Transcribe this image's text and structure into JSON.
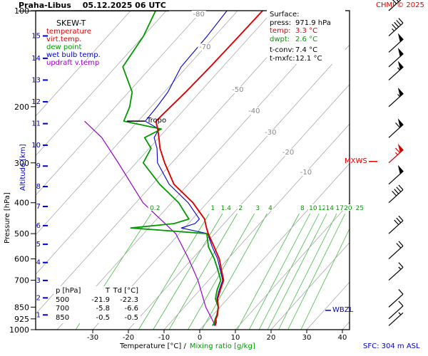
{
  "header": {
    "station": "Praha-Libus",
    "datetime": "05.12.2025 06 UTC",
    "copyright": "CHMI © 2025"
  },
  "chart_label": "SKEW-T",
  "legend": {
    "items": [
      {
        "label": "temperature",
        "color": "#dd0000"
      },
      {
        "label": "virt.temp.",
        "color": "#dd0000"
      },
      {
        "label": "dew point",
        "color": "#009900"
      },
      {
        "label": "wet bulb temp.",
        "color": "#0000cc"
      },
      {
        "label": "updraft v.temp",
        "color": "#9900cc"
      }
    ]
  },
  "surface_box": {
    "title": "Surface:",
    "lines": [
      {
        "label": "press:",
        "value": "971.9 hPa",
        "color": "#000000",
        "gap": false
      },
      {
        "label": "temp:",
        "value": "3.3 °C",
        "color": "#dd0000",
        "gap": false
      },
      {
        "label": "dwpt:",
        "value": "2.6 °C",
        "color": "#009900",
        "gap": false
      },
      {
        "label": "t-conv:",
        "value": "7.4 °C",
        "color": "#000000",
        "gap": true
      },
      {
        "label": "t-mxfc:",
        "value": "12.1 °C",
        "color": "#000000",
        "gap": false
      }
    ]
  },
  "table": {
    "headers": [
      "p [hPa]",
      "T",
      "Td [°C]"
    ],
    "rows": [
      [
        "500",
        "-21.9",
        "-22.3"
      ],
      [
        "700",
        "-5.8",
        "-6.6"
      ],
      [
        "850",
        "-0.5",
        "-0.5"
      ]
    ]
  },
  "axes": {
    "pressure_title": "Pressure [hPa]",
    "altitude_title": "Altitude [km]",
    "temperature_title": "Temperature [°C] /",
    "mixing_title": "Mixing ratio [g/kg]",
    "pressure_ticks": [
      100,
      200,
      300,
      400,
      500,
      600,
      700,
      850,
      925,
      1000
    ],
    "altitude_ticks": [
      1,
      2,
      3,
      4,
      5,
      6,
      7,
      8,
      9,
      10,
      11,
      12,
      13,
      14,
      15
    ],
    "temperature_ticks": [
      -30,
      -20,
      -10,
      0,
      10,
      20,
      30,
      40
    ]
  },
  "markers": {
    "tropo": "Tropo",
    "mxws": "MXWS",
    "wbzl": "WBZL",
    "sfc": "SFC: 304 m ASL"
  },
  "colors": {
    "red": "#dd0000",
    "green": "#009900",
    "blue": "#0000cc",
    "purple": "#9900cc",
    "grid_gray": "#aaaaaa",
    "mixing_green": "#44bb44",
    "label_gray": "#888888"
  },
  "chart_data": {
    "type": "skewt-sounding",
    "station": "Praha-Libus",
    "valid": "05.12.2025 06 UTC",
    "pressure_axis_hpa": [
      100,
      1000
    ],
    "isotherm_labels_c": [
      -80,
      -70,
      -50,
      -40,
      -30,
      -20,
      -10
    ],
    "mixing_ratio_lines_gkg": [
      0.2,
      1,
      1.4,
      2,
      3,
      4,
      8,
      10,
      12,
      14,
      17,
      20,
      25
    ],
    "surface": {
      "press_hpa": 971.9,
      "temp_c": 3.3,
      "dwpt_c": 2.6,
      "t_conv_c": 7.4,
      "t_mxfc_c": 12.1,
      "elevation": "304 m ASL"
    },
    "tropopause_hpa": 222,
    "wbzl_hpa": 870,
    "mxws_hpa": 297,
    "sounding": [
      {
        "p": 972,
        "t": 3.3,
        "td": 2.6
      },
      {
        "p": 950,
        "t": 2.8,
        "td": 2.3
      },
      {
        "p": 925,
        "t": 1.8,
        "td": 1.6
      },
      {
        "p": 900,
        "t": 1.3,
        "td": 1.1
      },
      {
        "p": 850,
        "t": -0.5,
        "td": -0.5
      },
      {
        "p": 800,
        "t": -2.8,
        "td": -3.4
      },
      {
        "p": 750,
        "t": -4.3,
        "td": -5.2
      },
      {
        "p": 700,
        "t": -5.8,
        "td": -6.6
      },
      {
        "p": 650,
        "t": -9.0,
        "td": -10.0
      },
      {
        "p": 600,
        "t": -12.4,
        "td": -13.8
      },
      {
        "p": 550,
        "t": -16.9,
        "td": -18.5
      },
      {
        "p": 500,
        "t": -21.9,
        "td": -22.3
      },
      {
        "p": 480,
        "t": -23.8,
        "td": -45.0
      },
      {
        "p": 465,
        "t": -25.2,
        "td": -34.0
      },
      {
        "p": 450,
        "t": -26.6,
        "td": -31.0
      },
      {
        "p": 400,
        "t": -34.0,
        "td": -38.0
      },
      {
        "p": 350,
        "t": -44.0,
        "td": -48.0
      },
      {
        "p": 300,
        "t": -52.0,
        "td": -58.0
      },
      {
        "p": 270,
        "t": -57.0,
        "td": -59.5
      },
      {
        "p": 250,
        "t": -60.0,
        "td": -64.0
      },
      {
        "p": 235,
        "t": -62.5,
        "td": -61.5
      },
      {
        "p": 222,
        "t": -65.0,
        "td": -74.0
      },
      {
        "p": 200,
        "t": -64.5,
        "td": -76.0
      },
      {
        "p": 180,
        "t": -64.0,
        "td": -79.0
      },
      {
        "p": 150,
        "t": -63.5,
        "td": -88.0
      },
      {
        "p": 120,
        "t": -63.2,
        "td": -90.0
      },
      {
        "p": 100,
        "t": -63.0,
        "td": -93.0
      }
    ],
    "updraft_parcel": [
      {
        "p": 972,
        "t": 3.4
      },
      {
        "p": 850,
        "t": -4.0
      },
      {
        "p": 700,
        "t": -13.0
      },
      {
        "p": 600,
        "t": -21.0
      },
      {
        "p": 500,
        "t": -31.0
      },
      {
        "p": 400,
        "t": -48.0
      },
      {
        "p": 300,
        "t": -65.0
      },
      {
        "p": 250,
        "t": -76.0
      },
      {
        "p": 222,
        "t": -85.0
      }
    ],
    "winds": [
      {
        "p": 972,
        "spd_kt": 5,
        "max": false
      },
      {
        "p": 925,
        "spd_kt": 10,
        "max": false
      },
      {
        "p": 850,
        "spd_kt": 10,
        "max": false
      },
      {
        "p": 700,
        "spd_kt": 15,
        "max": false
      },
      {
        "p": 600,
        "spd_kt": 20,
        "max": false
      },
      {
        "p": 500,
        "spd_kt": 30,
        "max": false
      },
      {
        "p": 400,
        "spd_kt": 40,
        "max": false
      },
      {
        "p": 350,
        "spd_kt": 50,
        "max": false
      },
      {
        "p": 300,
        "spd_kt": 65,
        "max": true
      },
      {
        "p": 250,
        "spd_kt": 60,
        "max": false
      },
      {
        "p": 200,
        "spd_kt": 55,
        "max": false
      },
      {
        "p": 165,
        "spd_kt": 55,
        "max": false
      },
      {
        "p": 150,
        "spd_kt": 50,
        "max": false
      },
      {
        "p": 135,
        "spd_kt": 50,
        "max": false
      },
      {
        "p": 120,
        "spd_kt": 45,
        "max": false
      },
      {
        "p": 100,
        "spd_kt": 40,
        "max": false
      }
    ]
  }
}
